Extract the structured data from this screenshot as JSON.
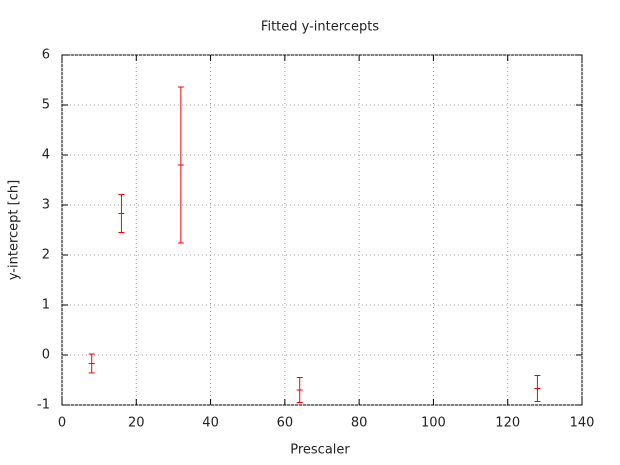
{
  "chart_data": {
    "type": "errorbar",
    "title": "Fitted y-intercepts",
    "x_label": "Prescaler",
    "y_label": "y-intercept [ch]",
    "x": [
      8,
      16,
      32,
      64,
      128
    ],
    "values": [
      -0.17,
      2.83,
      3.8,
      -0.7,
      -0.67
    ],
    "errors": [
      0.19,
      0.38,
      1.56,
      0.25,
      0.26
    ],
    "color": "#ff0000",
    "xlim": [
      0,
      140
    ],
    "xticks": [
      0,
      20,
      40,
      60,
      80,
      100,
      120,
      140
    ],
    "ylim": [
      -1,
      6
    ],
    "yticks": [
      -1,
      0,
      1,
      2,
      3,
      4,
      5,
      6
    ],
    "grid": true
  }
}
